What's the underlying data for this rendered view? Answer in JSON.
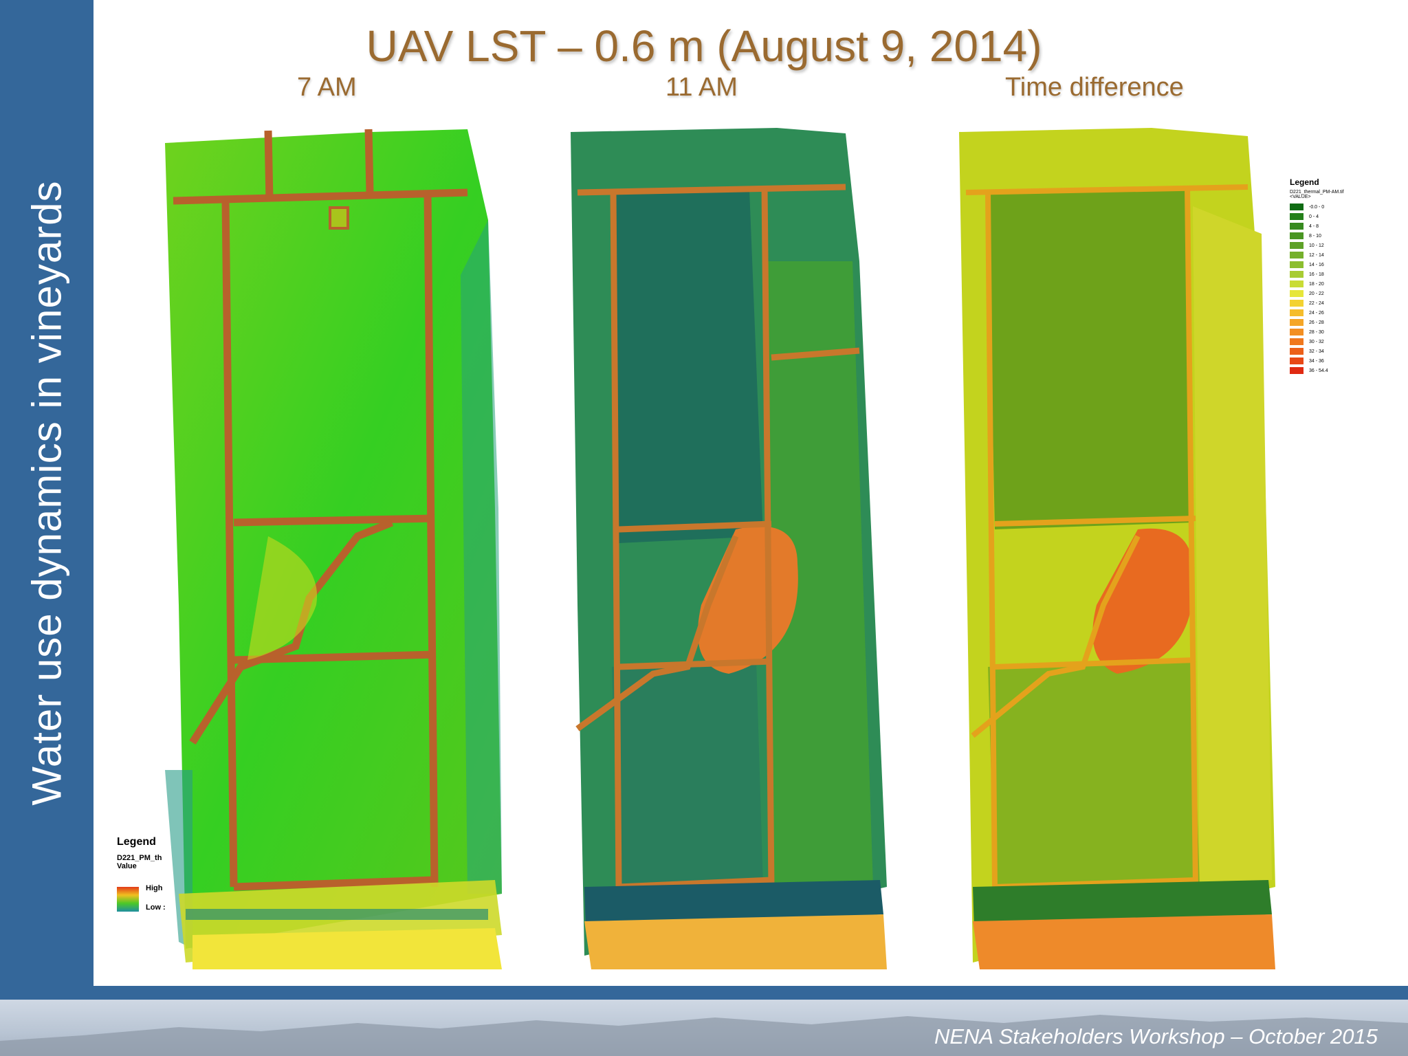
{
  "slide": {
    "title": "UAV LST – 0.6 m (August 9, 2014)",
    "side_label": "Water use dynamics in vineyards",
    "footer": "NENA Stakeholders Workshop – October 2015"
  },
  "panels": [
    {
      "label": "7 AM",
      "base_color": "#3ccf1e",
      "accent": "#b7dc1a",
      "road_color": "#b8612c"
    },
    {
      "label": "11 AM",
      "base_color": "#2c8a55",
      "accent": "#e0852a",
      "road_color": "#c8772c"
    },
    {
      "label": "Time difference",
      "base_color": "#6aa219",
      "accent": "#e86a20",
      "road_color": "#e4a21c"
    }
  ],
  "legend_left": {
    "title": "Legend",
    "layer": "D221_PM_th",
    "value_label": "Value",
    "high": "High",
    "low": "Low :"
  },
  "legend_right": {
    "title": "Legend",
    "layer": "D221_thermal_PM-AM.tif",
    "value_label": "<VALUE>",
    "classes": [
      {
        "label": "-0.0 - 0",
        "color": "#0f6b13"
      },
      {
        "label": "0 - 4",
        "color": "#24801a"
      },
      {
        "label": "4 - 8",
        "color": "#378a1f"
      },
      {
        "label": "8 - 10",
        "color": "#4a9623"
      },
      {
        "label": "10 - 12",
        "color": "#5ea228"
      },
      {
        "label": "12 - 14",
        "color": "#75b02c"
      },
      {
        "label": "14 - 16",
        "color": "#8cbe2f"
      },
      {
        "label": "16 - 18",
        "color": "#a8cc33"
      },
      {
        "label": "18 - 20",
        "color": "#c9dc36"
      },
      {
        "label": "20 - 22",
        "color": "#e6e63a"
      },
      {
        "label": "22 - 24",
        "color": "#f3d232"
      },
      {
        "label": "24 - 26",
        "color": "#f5bd2c"
      },
      {
        "label": "26 - 28",
        "color": "#f5a627"
      },
      {
        "label": "28 - 30",
        "color": "#f38f22"
      },
      {
        "label": "30 - 32",
        "color": "#f0781e"
      },
      {
        "label": "32 - 34",
        "color": "#ec601a"
      },
      {
        "label": "34 - 36",
        "color": "#e84816"
      },
      {
        "label": "36 - 54.4",
        "color": "#e02a12"
      }
    ]
  }
}
